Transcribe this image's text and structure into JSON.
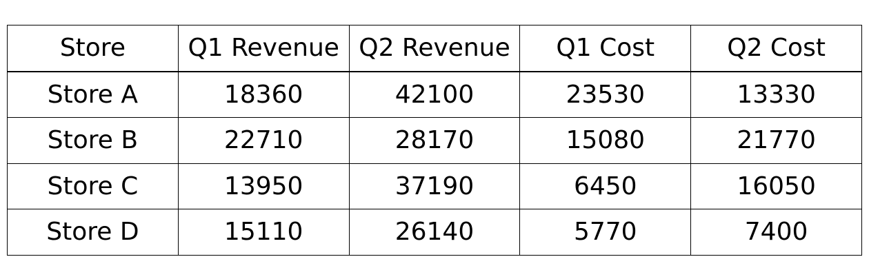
{
  "chart_data": {
    "type": "table",
    "columns": [
      "Store",
      "Q1 Revenue",
      "Q2 Revenue",
      "Q1 Cost",
      "Q2 Cost"
    ],
    "rows": [
      [
        "Store A",
        "18360",
        "42100",
        "23530",
        "13330"
      ],
      [
        "Store B",
        "22710",
        "28170",
        "15080",
        "21770"
      ],
      [
        "Store C",
        "13950",
        "37190",
        "6450",
        "16050"
      ],
      [
        "Store D",
        "15110",
        "26140",
        "5770",
        "7400"
      ]
    ]
  }
}
